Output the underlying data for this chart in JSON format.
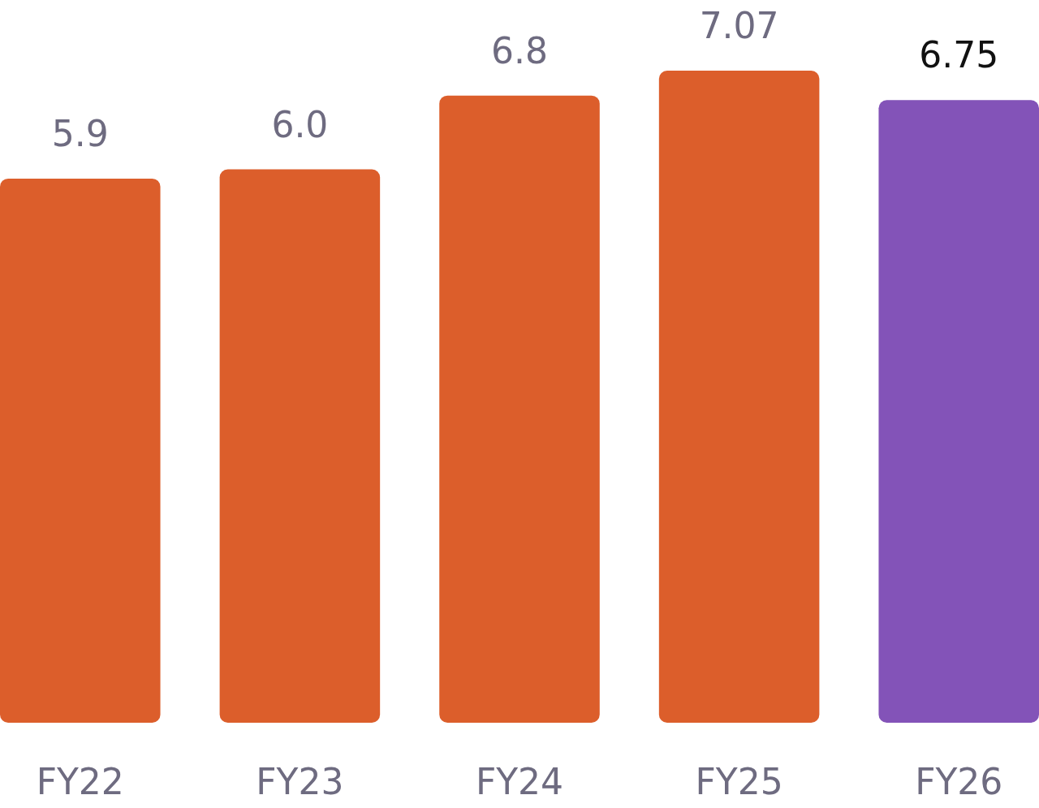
{
  "chart_data": {
    "type": "bar",
    "categories": [
      "FY22",
      "FY23",
      "FY24",
      "FY25",
      "FY26"
    ],
    "values": [
      5.9,
      6.0,
      6.8,
      7.07,
      6.75
    ],
    "value_labels": [
      "5.9",
      "6.0",
      "6.8",
      "7.07",
      "6.75"
    ],
    "colors": [
      "#dc5e2b",
      "#dc5e2b",
      "#dc5e2b",
      "#dc5e2b",
      "#8353b8"
    ]
  }
}
